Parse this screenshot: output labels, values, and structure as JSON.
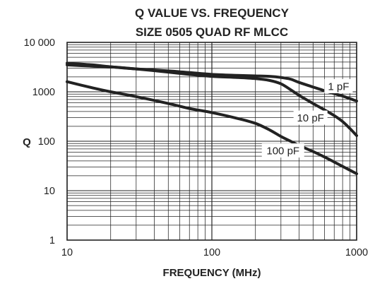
{
  "chart_data": {
    "type": "line",
    "title": [
      "Q VALUE VS. FREQUENCY",
      "SIZE 0505 QUAD RF MLCC"
    ],
    "xlabel": "FREQUENCY (MHz)",
    "ylabel": "Q",
    "xscale": "log",
    "yscale": "log",
    "xlim": [
      10,
      1000
    ],
    "ylim": [
      1,
      10000
    ],
    "grid": true,
    "x_ticks": [
      10,
      100,
      1000
    ],
    "x_tick_labels": [
      "10",
      "100",
      "1000"
    ],
    "y_ticks": [
      1,
      10,
      100,
      1000,
      10000
    ],
    "y_tick_labels": [
      "1",
      "10",
      "100",
      "1000",
      "10 000"
    ],
    "series": [
      {
        "name": "1 pF",
        "x": [
          10,
          15,
          20,
          30,
          50,
          70,
          100,
          150,
          200,
          250,
          300,
          350,
          400,
          500,
          600,
          700,
          800,
          1000
        ],
        "y": [
          3800,
          3500,
          3200,
          2900,
          2650,
          2450,
          2250,
          2150,
          2100,
          2050,
          1950,
          1800,
          1550,
          1250,
          1050,
          920,
          820,
          650
        ]
      },
      {
        "name": "10 pF",
        "x": [
          10,
          15,
          20,
          30,
          50,
          70,
          100,
          150,
          200,
          250,
          300,
          350,
          400,
          500,
          600,
          700,
          800,
          900,
          1000
        ],
        "y": [
          3500,
          3300,
          3200,
          2900,
          2500,
          2250,
          2050,
          1950,
          1850,
          1700,
          1450,
          1100,
          850,
          580,
          430,
          330,
          250,
          180,
          130
        ]
      },
      {
        "name": "100 pF",
        "x": [
          10,
          15,
          20,
          30,
          50,
          70,
          100,
          150,
          200,
          250,
          300,
          350,
          400,
          500,
          600,
          700,
          800,
          1000
        ],
        "y": [
          1600,
          1200,
          1000,
          800,
          580,
          460,
          380,
          290,
          230,
          170,
          125,
          100,
          82,
          62,
          48,
          38,
          31,
          22
        ]
      }
    ],
    "annotations": [
      {
        "text": "1 pF",
        "series": "1 pF"
      },
      {
        "text": "10 pF",
        "series": "10 pF"
      },
      {
        "text": "100 pF",
        "series": "100 pF"
      }
    ]
  }
}
